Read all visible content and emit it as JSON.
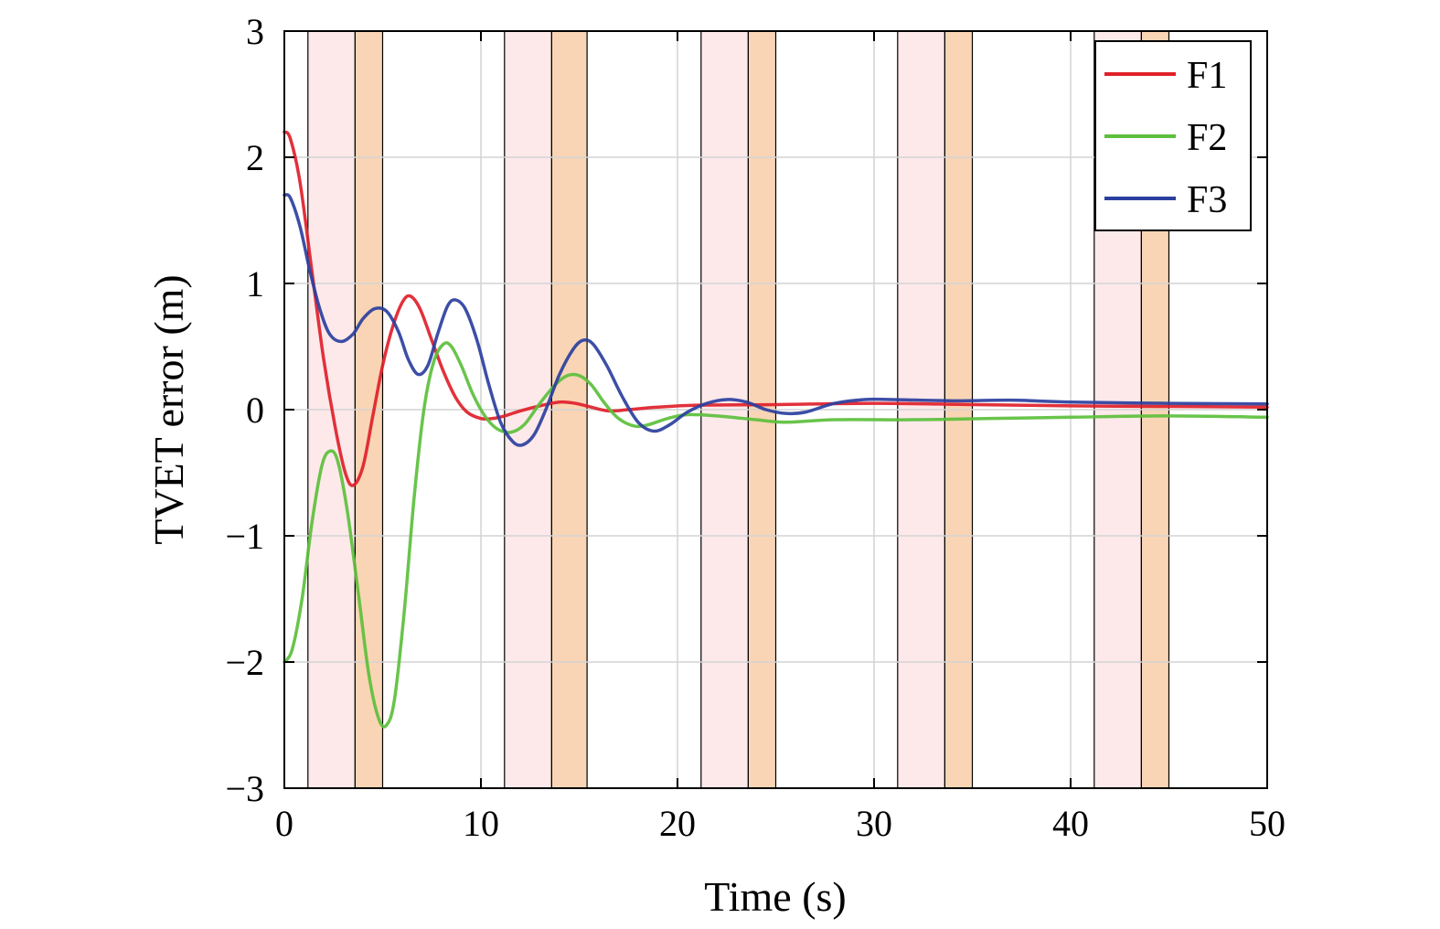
{
  "chart_data": {
    "type": "line",
    "title": "",
    "xlabel": "Time (s)",
    "ylabel": "TVET error (m)",
    "xlim": [
      0,
      50
    ],
    "ylim": [
      -3,
      3
    ],
    "xticks": [
      0,
      10,
      20,
      30,
      40,
      50
    ],
    "yticks": [
      -3,
      -2,
      -1,
      0,
      1,
      2,
      3
    ],
    "xtick_labels": [
      "0",
      "10",
      "20",
      "30",
      "40",
      "50"
    ],
    "ytick_labels": [
      "−3",
      "−2",
      "−1",
      "0",
      "1",
      "2",
      "3"
    ],
    "grid": true,
    "legend_position": "top-right",
    "shaded_intervals": [
      {
        "start": 1.2,
        "end": 3.6,
        "color": "#fde9ea"
      },
      {
        "start": 3.6,
        "end": 5.0,
        "color": "#f9d5b5"
      },
      {
        "start": 11.2,
        "end": 13.6,
        "color": "#fde9ea"
      },
      {
        "start": 13.6,
        "end": 15.4,
        "color": "#f9d5b5"
      },
      {
        "start": 21.2,
        "end": 23.6,
        "color": "#fde9ea"
      },
      {
        "start": 23.6,
        "end": 25.0,
        "color": "#f9d5b5"
      },
      {
        "start": 31.2,
        "end": 33.6,
        "color": "#fde9ea"
      },
      {
        "start": 33.6,
        "end": 35.0,
        "color": "#f9d5b5"
      },
      {
        "start": 41.2,
        "end": 43.6,
        "color": "#fde9ea"
      },
      {
        "start": 43.6,
        "end": 45.0,
        "color": "#f9d5b5"
      }
    ],
    "series": [
      {
        "name": "F1",
        "color": "#e0202a",
        "points": [
          [
            0,
            2.2
          ],
          [
            0.3,
            2.15
          ],
          [
            0.8,
            1.8
          ],
          [
            1.4,
            1.1
          ],
          [
            2.0,
            0.4
          ],
          [
            2.6,
            -0.15
          ],
          [
            3.1,
            -0.5
          ],
          [
            3.5,
            -0.6
          ],
          [
            4.0,
            -0.45
          ],
          [
            4.5,
            -0.05
          ],
          [
            5.0,
            0.35
          ],
          [
            5.5,
            0.65
          ],
          [
            6.0,
            0.85
          ],
          [
            6.4,
            0.9
          ],
          [
            6.9,
            0.8
          ],
          [
            7.5,
            0.55
          ],
          [
            8.1,
            0.3
          ],
          [
            8.7,
            0.1
          ],
          [
            9.3,
            -0.02
          ],
          [
            10.0,
            -0.07
          ],
          [
            10.6,
            -0.07
          ],
          [
            11.2,
            -0.05
          ],
          [
            12.0,
            -0.01
          ],
          [
            13.0,
            0.03
          ],
          [
            14.0,
            0.06
          ],
          [
            14.8,
            0.05
          ],
          [
            15.6,
            0.02
          ],
          [
            16.5,
            -0.01
          ],
          [
            17.5,
            0.0
          ],
          [
            19.0,
            0.02
          ],
          [
            21.0,
            0.035
          ],
          [
            25.0,
            0.04
          ],
          [
            30.0,
            0.05
          ],
          [
            35.0,
            0.04
          ],
          [
            40.0,
            0.03
          ],
          [
            45.0,
            0.025
          ],
          [
            50.0,
            0.02
          ]
        ]
      },
      {
        "name": "F2",
        "color": "#5cbf3c",
        "points": [
          [
            0,
            -2.0
          ],
          [
            0.4,
            -1.9
          ],
          [
            0.9,
            -1.5
          ],
          [
            1.4,
            -0.9
          ],
          [
            1.9,
            -0.45
          ],
          [
            2.3,
            -0.33
          ],
          [
            2.7,
            -0.4
          ],
          [
            3.2,
            -0.8
          ],
          [
            3.8,
            -1.5
          ],
          [
            4.3,
            -2.1
          ],
          [
            4.8,
            -2.45
          ],
          [
            5.2,
            -2.5
          ],
          [
            5.6,
            -2.3
          ],
          [
            6.1,
            -1.6
          ],
          [
            6.6,
            -0.7
          ],
          [
            7.1,
            0.0
          ],
          [
            7.6,
            0.38
          ],
          [
            8.1,
            0.52
          ],
          [
            8.5,
            0.5
          ],
          [
            9.0,
            0.35
          ],
          [
            9.6,
            0.12
          ],
          [
            10.2,
            -0.05
          ],
          [
            10.8,
            -0.15
          ],
          [
            11.5,
            -0.18
          ],
          [
            12.2,
            -0.12
          ],
          [
            13.0,
            0.05
          ],
          [
            13.8,
            0.2
          ],
          [
            14.4,
            0.27
          ],
          [
            15.0,
            0.27
          ],
          [
            15.6,
            0.2
          ],
          [
            16.3,
            0.05
          ],
          [
            17.0,
            -0.07
          ],
          [
            17.8,
            -0.13
          ],
          [
            18.5,
            -0.12
          ],
          [
            19.5,
            -0.07
          ],
          [
            20.5,
            -0.04
          ],
          [
            22.0,
            -0.05
          ],
          [
            24.0,
            -0.08
          ],
          [
            25.5,
            -0.1
          ],
          [
            28.0,
            -0.08
          ],
          [
            32.0,
            -0.08
          ],
          [
            36.0,
            -0.07
          ],
          [
            40.0,
            -0.06
          ],
          [
            45.0,
            -0.05
          ],
          [
            50.0,
            -0.06
          ]
        ]
      },
      {
        "name": "F3",
        "color": "#2b3f9e",
        "points": [
          [
            0,
            1.7
          ],
          [
            0.3,
            1.68
          ],
          [
            0.8,
            1.45
          ],
          [
            1.3,
            1.1
          ],
          [
            1.8,
            0.8
          ],
          [
            2.3,
            0.6
          ],
          [
            2.9,
            0.54
          ],
          [
            3.5,
            0.6
          ],
          [
            4.0,
            0.72
          ],
          [
            4.6,
            0.8
          ],
          [
            5.2,
            0.78
          ],
          [
            5.8,
            0.62
          ],
          [
            6.3,
            0.4
          ],
          [
            6.8,
            0.28
          ],
          [
            7.3,
            0.35
          ],
          [
            7.8,
            0.6
          ],
          [
            8.3,
            0.82
          ],
          [
            8.7,
            0.87
          ],
          [
            9.2,
            0.8
          ],
          [
            9.8,
            0.55
          ],
          [
            10.4,
            0.2
          ],
          [
            11.0,
            -0.1
          ],
          [
            11.6,
            -0.25
          ],
          [
            12.1,
            -0.28
          ],
          [
            12.7,
            -0.2
          ],
          [
            13.3,
            0.0
          ],
          [
            14.0,
            0.28
          ],
          [
            14.7,
            0.48
          ],
          [
            15.2,
            0.55
          ],
          [
            15.7,
            0.52
          ],
          [
            16.4,
            0.35
          ],
          [
            17.2,
            0.1
          ],
          [
            18.0,
            -0.1
          ],
          [
            18.8,
            -0.17
          ],
          [
            19.6,
            -0.12
          ],
          [
            20.5,
            -0.02
          ],
          [
            21.5,
            0.05
          ],
          [
            22.5,
            0.08
          ],
          [
            23.5,
            0.06
          ],
          [
            24.5,
            0.0
          ],
          [
            25.5,
            -0.03
          ],
          [
            26.5,
            -0.02
          ],
          [
            28.0,
            0.05
          ],
          [
            29.5,
            0.08
          ],
          [
            31.0,
            0.08
          ],
          [
            34.0,
            0.07
          ],
          [
            37.0,
            0.075
          ],
          [
            40.0,
            0.06
          ],
          [
            45.0,
            0.05
          ],
          [
            50.0,
            0.045
          ]
        ]
      }
    ]
  }
}
